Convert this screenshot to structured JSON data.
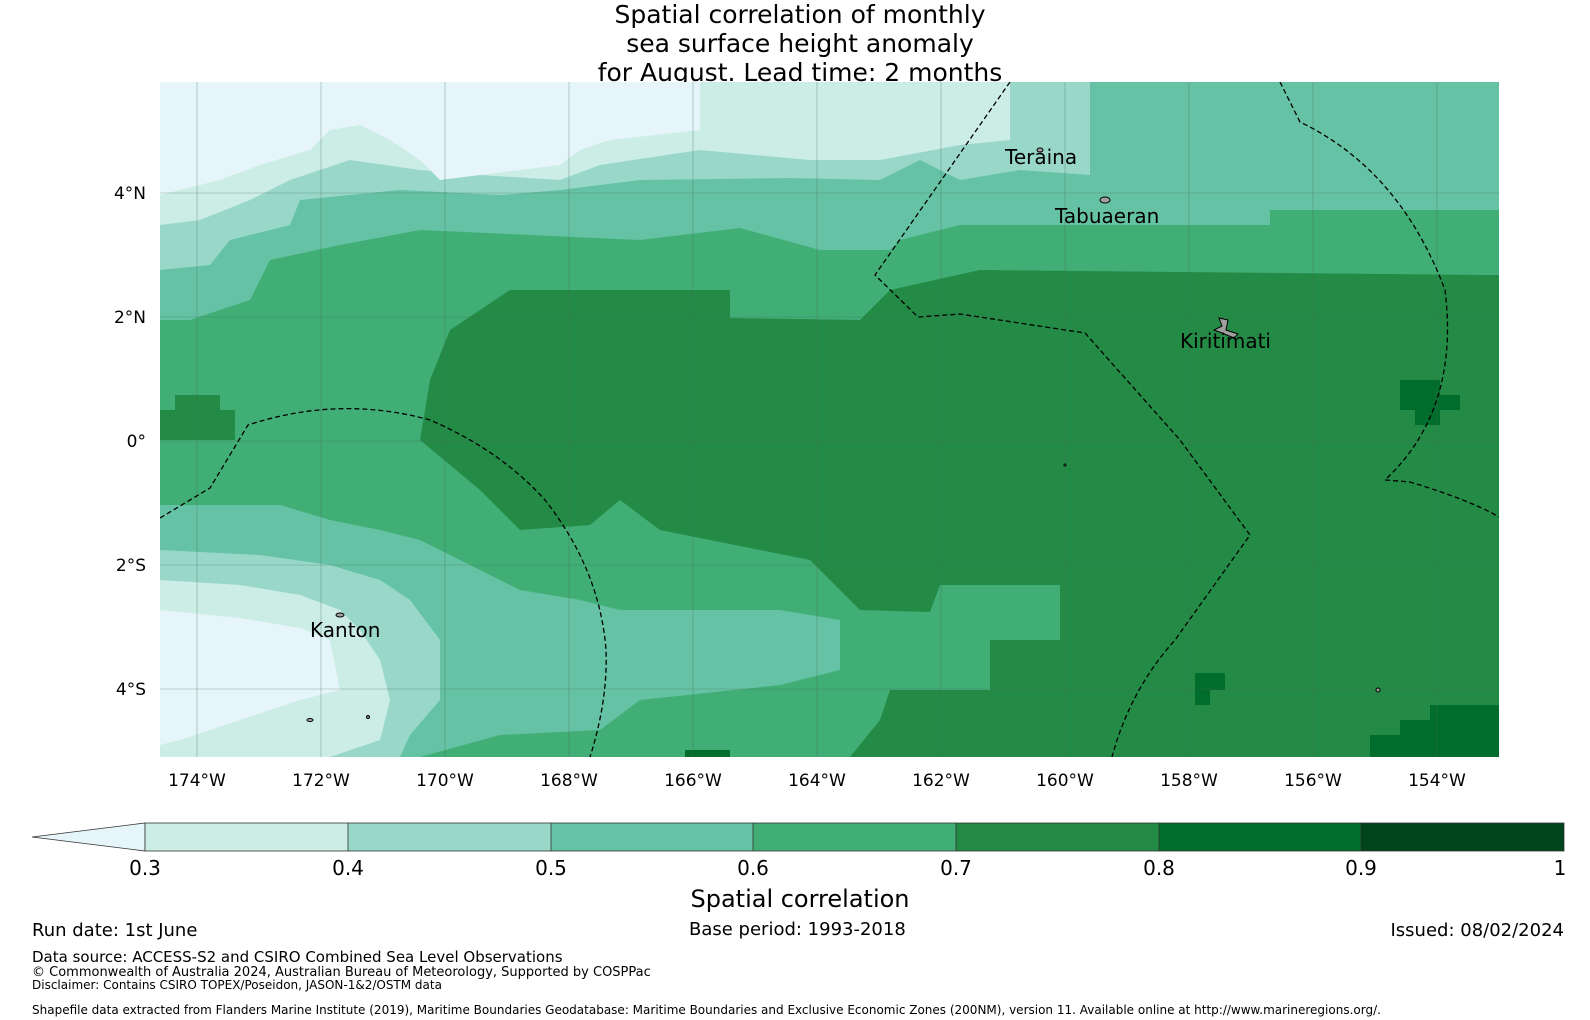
{
  "title": {
    "line1": "Spatial correlation of monthly",
    "line2": "sea surface height anomaly",
    "line3": "for August. Lead time: 2 months"
  },
  "map": {
    "lat_ticks": [
      "4°N",
      "2°N",
      "0°",
      "2°S",
      "4°S"
    ],
    "lon_ticks": [
      "174°W",
      "172°W",
      "170°W",
      "168°W",
      "166°W",
      "164°W",
      "162°W",
      "160°W",
      "158°W",
      "156°W",
      "154°W"
    ],
    "places": [
      "Teraina",
      "Tabuaeran",
      "Kiritimati",
      "Kanton"
    ],
    "colors": {
      "lt03": "#e5f5f9",
      "c03": "#ccece6",
      "c04": "#99d8c9",
      "c05": "#66c2a4",
      "c06": "#41ae76",
      "c07": "#238b45",
      "c08": "#006d2c",
      "c09": "#00441b",
      "land": "#a0a0a0"
    }
  },
  "colorbar": {
    "ticks": [
      "0.3",
      "0.4",
      "0.5",
      "0.6",
      "0.7",
      "0.8",
      "0.9",
      "1"
    ],
    "title": "Spatial correlation"
  },
  "footer": {
    "run_date": "Run date: 1st June",
    "base_period": "Base period: 1993-2018",
    "issued": "Issued: 08/02/2024",
    "data_source": "Data source: ACCESS-S2 and CSIRO Combined Sea Level Observations",
    "copyright": "© Commonwealth of Australia 2024, Australian Bureau of Meteorology, Supported by COSPPac",
    "disclaimer": "Disclaimer: Contains CSIRO TOPEX/Poseidon, JASON-1&2/OSTM data",
    "shapefile": "Shapefile data extracted from Flanders Marine Institute (2019), Maritime Boundaries Geodatabase: Maritime Boundaries and Exclusive Economic Zones (200NM), version 11. Available online at http://www.marineregions.org/."
  }
}
